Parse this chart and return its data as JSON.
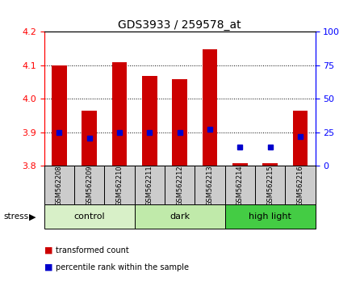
{
  "title": "GDS3933 / 259578_at",
  "samples": [
    "GSM562208",
    "GSM562209",
    "GSM562210",
    "GSM562211",
    "GSM562212",
    "GSM562213",
    "GSM562214",
    "GSM562215",
    "GSM562216"
  ],
  "red_bar_top": [
    4.098,
    3.965,
    4.108,
    4.068,
    4.058,
    4.148,
    3.808,
    3.808,
    3.965
  ],
  "red_bar_bottom": 3.8,
  "blue_y": [
    3.9,
    3.882,
    3.9,
    3.9,
    3.9,
    3.908,
    3.855,
    3.857,
    3.888
  ],
  "ylim": [
    3.8,
    4.2
  ],
  "yticks_left": [
    3.8,
    3.9,
    4.0,
    4.1,
    4.2
  ],
  "yticks_right": [
    0,
    25,
    50,
    75,
    100
  ],
  "groups": [
    {
      "label": "control",
      "start": 0,
      "end": 3,
      "color": "#d8f0c8"
    },
    {
      "label": "dark",
      "start": 3,
      "end": 6,
      "color": "#c0eaaa"
    },
    {
      "label": "high light",
      "start": 6,
      "end": 9,
      "color": "#44cc44"
    }
  ],
  "stress_label": "stress",
  "bar_color": "#cc0000",
  "blue_color": "#0000cc",
  "bar_width": 0.5,
  "blue_marker_size": 5,
  "grid_color": "#000000",
  "grid_style": "dotted",
  "sample_box_color": "#cccccc",
  "background_color": "#ffffff",
  "legend_red": "transformed count",
  "legend_blue": "percentile rank within the sample"
}
